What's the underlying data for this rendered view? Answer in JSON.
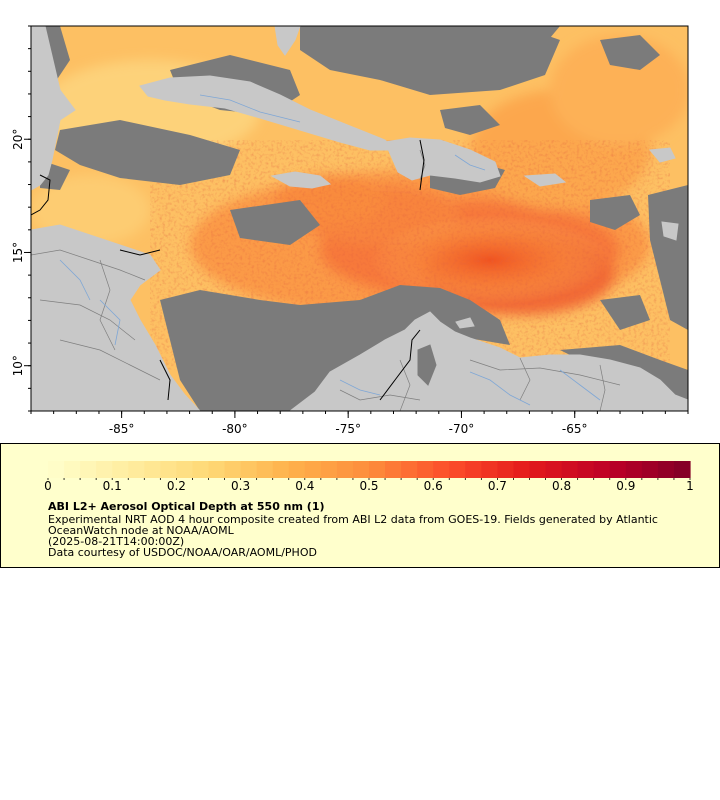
{
  "map": {
    "x_ticks": [
      {
        "lon": -85,
        "label": "-85°"
      },
      {
        "lon": -80,
        "label": "-80°"
      },
      {
        "lon": -75,
        "label": "-75°"
      },
      {
        "lon": -70,
        "label": "-70°"
      },
      {
        "lon": -65,
        "label": "-65°"
      }
    ],
    "y_ticks": [
      {
        "lat": 20,
        "label": "20°"
      },
      {
        "lat": 15,
        "label": "15°"
      },
      {
        "lat": 10,
        "label": "10°"
      }
    ],
    "lon_range": [
      -89,
      -60
    ],
    "lat_range": [
      8,
      25
    ],
    "colors": {
      "ocean_nodata": "#7b7b7b",
      "land": "#c8c8c8",
      "rivers": "#7fa7d6",
      "borders": "#7f7f7f",
      "frame": "#000000"
    }
  },
  "legend": {
    "tick_labels": [
      "0",
      "0.1",
      "0.2",
      "0.3",
      "0.4",
      "0.5",
      "0.6",
      "0.7",
      "0.8",
      "0.9",
      "1"
    ],
    "range": [
      0,
      1
    ],
    "colormap": [
      "#ffffcc",
      "#ffeda0",
      "#fed976",
      "#feb24c",
      "#fd8d3c",
      "#fc4e2a",
      "#e31a1c",
      "#bd0026",
      "#800026"
    ],
    "title": "ABI L2+ Aerosol Optical Depth at 550 nm (1)",
    "line1": "Experimental NRT AOD 4 hour composite created from ABI L2 data from GOES-19. Fields generated by Atlantic",
    "line2": "OceanWatch node at NOAA/AOML",
    "line3": "(2025-08-21T14:00:00Z)",
    "line4": "Data courtesy of USDOC/NOAA/OAR/AOML/PHOD"
  }
}
